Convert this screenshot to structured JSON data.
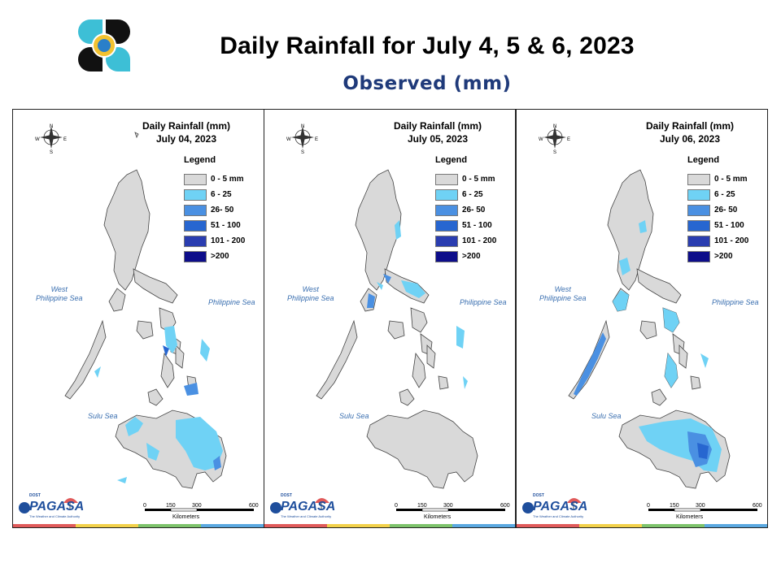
{
  "header": {
    "title": "Daily Rainfall for July 4, 5 & 6, 2023",
    "subtitle": "Observed (mm)"
  },
  "legend": {
    "heading": "Legend",
    "classes": [
      {
        "label": "0 - 5 mm",
        "color": "#d9d9d9"
      },
      {
        "label": "6 - 25",
        "color": "#6fd2f5"
      },
      {
        "label": "26- 50",
        "color": "#4a90e2"
      },
      {
        "label": "51 - 100",
        "color": "#2766d0"
      },
      {
        "label": "101 - 200",
        "color": "#2a3db0"
      },
      {
        "label": ">200",
        "color": "#0d0d8a"
      }
    ]
  },
  "panels": [
    {
      "title_line1": "Daily Rainfall (mm)",
      "title_line2": "July 04, 2023"
    },
    {
      "title_line1": "Daily Rainfall (mm)",
      "title_line2": "July 05, 2023"
    },
    {
      "title_line1": "Daily Rainfall (mm)",
      "title_line2": "July 06, 2023"
    }
  ],
  "seas": {
    "west_line1": "West",
    "west_line2": "Philippine Sea",
    "east": "Philippine Sea",
    "sulu": "Sulu Sea"
  },
  "compass": {
    "n": "N",
    "e": "E",
    "s": "S",
    "w": "W"
  },
  "scale_bar": {
    "ticks": [
      "0",
      "150",
      "300",
      "600"
    ],
    "unit": "Kilometers"
  },
  "branding": {
    "small": "DOST",
    "word": "PAGASA",
    "tagline": "The Weather and Climate Authority"
  },
  "colors": {
    "land": "#d9d9d9",
    "strip": [
      "#e05a5a",
      "#f2d14a",
      "#7dc36b",
      "#5aa8e0"
    ]
  }
}
